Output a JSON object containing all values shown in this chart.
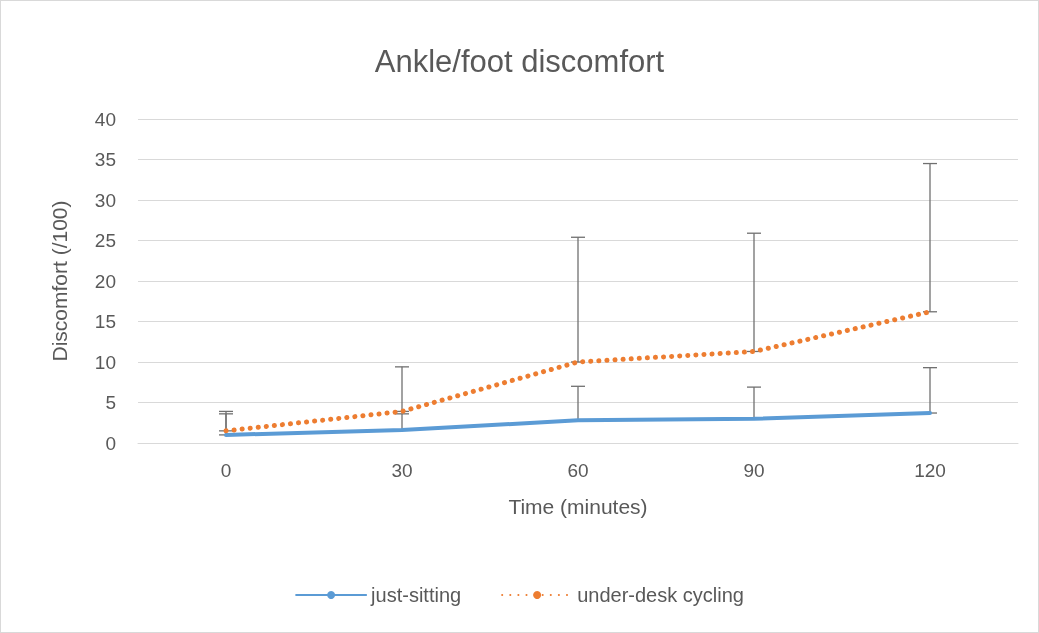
{
  "chart_data": {
    "type": "line",
    "title": "Ankle/foot discomfort",
    "xlabel": "Time (minutes)",
    "ylabel": "Discomfort (/100)",
    "categories": [
      "0",
      "30",
      "60",
      "90",
      "120"
    ],
    "series": [
      {
        "name": "just-sitting",
        "color": "#5b9bd5",
        "line_style": "solid",
        "values": [
          1.0,
          1.6,
          2.8,
          3.0,
          3.7
        ],
        "errors": [
          [
            1.0,
            3.6
          ],
          [
            1.6,
            3.6
          ],
          [
            2.8,
            7.0
          ],
          [
            3.0,
            6.9
          ],
          [
            3.7,
            9.3
          ]
        ]
      },
      {
        "name": "under-desk cycling",
        "color": "#ed7d31",
        "line_style": "dotted",
        "values": [
          1.5,
          3.9,
          10.0,
          11.3,
          16.2
        ],
        "errors": [
          [
            1.5,
            3.9
          ],
          [
            3.9,
            9.4
          ],
          [
            10.0,
            25.4
          ],
          [
            11.3,
            25.9
          ],
          [
            16.2,
            34.5
          ]
        ]
      }
    ],
    "ylim": [
      0,
      40
    ],
    "yticks": [
      0,
      5,
      10,
      15,
      20,
      25,
      30,
      35,
      40
    ],
    "grid": "y",
    "legend": "bottom",
    "marker": "none"
  }
}
